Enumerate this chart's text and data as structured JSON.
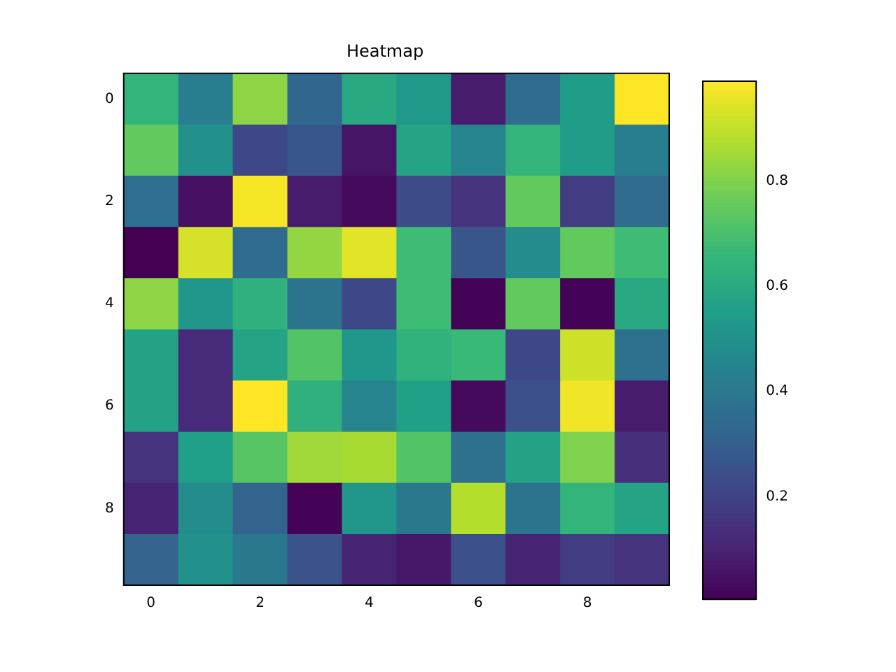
{
  "chart_data": {
    "type": "heatmap",
    "title": "Heatmap",
    "categories": [
      "0",
      null,
      "2",
      null,
      "4",
      null,
      "6",
      null,
      "8",
      null
    ],
    "y_categories": [
      "0",
      null,
      "2",
      null,
      "4",
      null,
      "6",
      null,
      "8",
      null
    ],
    "cells": [
      [
        0.65,
        0.42,
        0.82,
        0.33,
        0.6,
        0.53,
        0.08,
        0.35,
        0.55,
        0.99
      ],
      [
        0.75,
        0.5,
        0.22,
        0.27,
        0.06,
        0.58,
        0.45,
        0.65,
        0.55,
        0.42
      ],
      [
        0.36,
        0.05,
        0.98,
        0.08,
        0.03,
        0.23,
        0.15,
        0.75,
        0.18,
        0.35
      ],
      [
        0.005,
        0.93,
        0.35,
        0.83,
        0.95,
        0.68,
        0.27,
        0.48,
        0.75,
        0.68
      ],
      [
        0.82,
        0.52,
        0.63,
        0.38,
        0.22,
        0.68,
        0.01,
        0.75,
        0.01,
        0.6
      ],
      [
        0.57,
        0.12,
        0.58,
        0.72,
        0.52,
        0.64,
        0.67,
        0.22,
        0.92,
        0.37
      ],
      [
        0.57,
        0.12,
        0.99,
        0.63,
        0.45,
        0.56,
        0.03,
        0.25,
        0.97,
        0.08
      ],
      [
        0.15,
        0.56,
        0.73,
        0.85,
        0.86,
        0.72,
        0.37,
        0.57,
        0.8,
        0.14
      ],
      [
        0.1,
        0.48,
        0.32,
        0.01,
        0.52,
        0.4,
        0.88,
        0.38,
        0.65,
        0.58
      ],
      [
        0.32,
        0.5,
        0.4,
        0.26,
        0.1,
        0.07,
        0.25,
        0.1,
        0.18,
        0.15
      ]
    ],
    "clim": [
      0.005,
      0.99
    ],
    "cticks": [
      0.2,
      0.4,
      0.6,
      0.8
    ]
  }
}
